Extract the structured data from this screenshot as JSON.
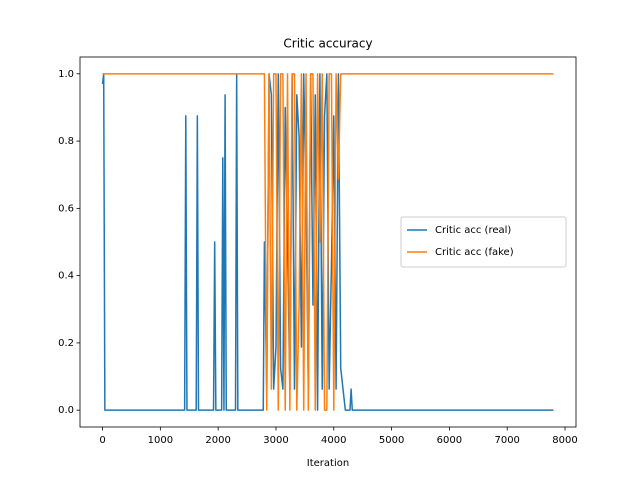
{
  "chart_data": {
    "type": "line",
    "title": "Critic accuracy",
    "xlabel": "Iteration",
    "x": [
      0,
      20,
      40,
      1420,
      1440,
      1460,
      1620,
      1640,
      1660,
      1920,
      1940,
      1960,
      2060,
      2080,
      2100,
      2120,
      2140,
      2300,
      2320,
      2340,
      2780,
      2800,
      2840,
      2880,
      2920,
      2960,
      3000,
      3040,
      3080,
      3120,
      3160,
      3200,
      3240,
      3280,
      3320,
      3360,
      3400,
      3440,
      3480,
      3520,
      3560,
      3600,
      3640,
      3680,
      3720,
      3760,
      3800,
      3840,
      3880,
      3920,
      3960,
      4000,
      4040,
      4080,
      4120,
      4160,
      4200,
      4280,
      4300,
      4320,
      7800
    ],
    "series": [
      {
        "name": "Critic acc (real)",
        "color": "#1f77b4",
        "values": [
          0.97,
          1,
          0,
          0,
          0.875,
          0,
          0,
          0.875,
          0,
          0,
          0.5,
          0,
          0,
          0.75,
          0,
          0.9375,
          0,
          0,
          1,
          0,
          0,
          0.5,
          0.0625,
          1,
          0.9375,
          0.0625,
          0.1875,
          1,
          0.125,
          0.0625,
          0.9,
          0.5,
          0.0625,
          1,
          0.0625,
          0.9375,
          0.8125,
          0.1875,
          1,
          0.625,
          0.0625,
          1,
          0.3125,
          0.9375,
          0,
          1,
          0.0625,
          0.875,
          1,
          0.0625,
          0.4375,
          0.875,
          0.0625,
          1,
          0.125,
          0.0625,
          0,
          0,
          0.0625,
          0,
          0
        ]
      },
      {
        "name": "Critic acc (fake)",
        "color": "#ff7f0e",
        "values": [
          1,
          1,
          1,
          1,
          1,
          1,
          1,
          1,
          1,
          1,
          1,
          1,
          1,
          1,
          1,
          1,
          1,
          1,
          1,
          1,
          1,
          1,
          0,
          1,
          0.0625,
          1,
          1,
          0,
          1,
          1,
          0,
          1,
          0,
          1,
          1,
          0,
          0.3125,
          1,
          0,
          1,
          0,
          1,
          1,
          0,
          1,
          0.5,
          1,
          0,
          0,
          1,
          1,
          0,
          1,
          0.6875,
          1,
          1,
          1,
          1,
          1,
          1,
          1
        ]
      }
    ],
    "xlim": [
      -390,
      8190
    ],
    "ylim": [
      -0.05,
      1.05
    ],
    "xticks": [
      0,
      1000,
      2000,
      3000,
      4000,
      5000,
      6000,
      7000,
      8000
    ],
    "yticks": [
      {
        "value": 0,
        "label": "0.0"
      },
      {
        "value": 0.2,
        "label": "0.2"
      },
      {
        "value": 0.4,
        "label": "0.4"
      },
      {
        "value": 0.6,
        "label": "0.6"
      },
      {
        "value": 0.8,
        "label": "0.8"
      },
      {
        "value": 1,
        "label": "1.0"
      }
    ],
    "legend": "center right"
  }
}
